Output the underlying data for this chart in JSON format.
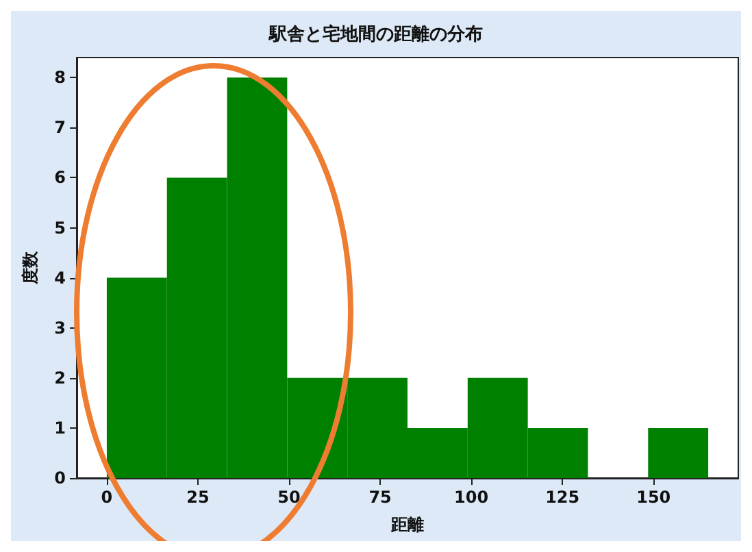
{
  "chart_data": {
    "type": "histogram",
    "title": "駅舎と宅地間の距離の分布",
    "xlabel": "距離",
    "ylabel": "度数",
    "bins": [
      0,
      16.5,
      33,
      49.5,
      66,
      82.5,
      99,
      115.5,
      132,
      148.5,
      165
    ],
    "values": [
      4,
      6,
      8,
      2,
      2,
      1,
      2,
      1,
      0,
      1
    ],
    "color": "#008000",
    "xlim": [
      -8.25,
      173.25
    ],
    "xticks": [
      0,
      25,
      50,
      75,
      100,
      125,
      150
    ],
    "ylim": [
      0,
      8.4
    ],
    "yticks": [
      0,
      1,
      2,
      3,
      4,
      5,
      6,
      7,
      8
    ],
    "grid": false,
    "legend": false
  }
}
